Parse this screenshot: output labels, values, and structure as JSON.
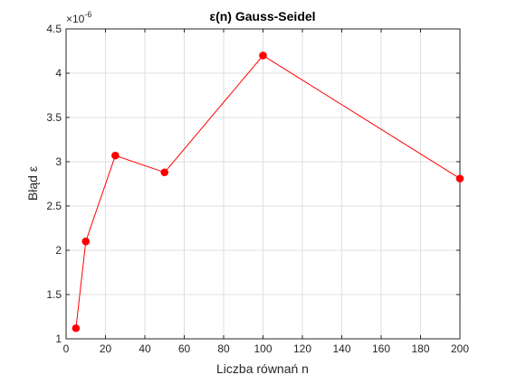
{
  "chart_data": {
    "type": "line",
    "title": "ε(n) Gauss-Seidel",
    "xlabel": "Liczba równań n",
    "ylabel": "Błąd ε",
    "exponent_label": "×10",
    "exponent_value": "-6",
    "x": [
      5,
      10,
      25,
      50,
      100,
      200
    ],
    "series": [
      {
        "values": [
          1.12e-06,
          2.1e-06,
          3.07e-06,
          2.88e-06,
          4.2e-06,
          2.81e-06
        ],
        "color": "#ff0000",
        "marker": "circle"
      }
    ],
    "xlim": [
      0,
      200
    ],
    "ylim": [
      1e-06,
      4.5e-06
    ],
    "xticks": [
      0,
      20,
      40,
      60,
      80,
      100,
      120,
      140,
      160,
      180,
      200
    ],
    "xtick_labels": [
      "0",
      "20",
      "40",
      "60",
      "80",
      "100",
      "120",
      "140",
      "160",
      "180",
      "200"
    ],
    "yticks": [
      1e-06,
      1.5e-06,
      2e-06,
      2.5e-06,
      3e-06,
      3.5e-06,
      4e-06,
      4.5e-06
    ],
    "ytick_labels": [
      "1",
      "1.5",
      "2",
      "2.5",
      "3",
      "3.5",
      "4",
      "4.5"
    ],
    "grid": true
  }
}
